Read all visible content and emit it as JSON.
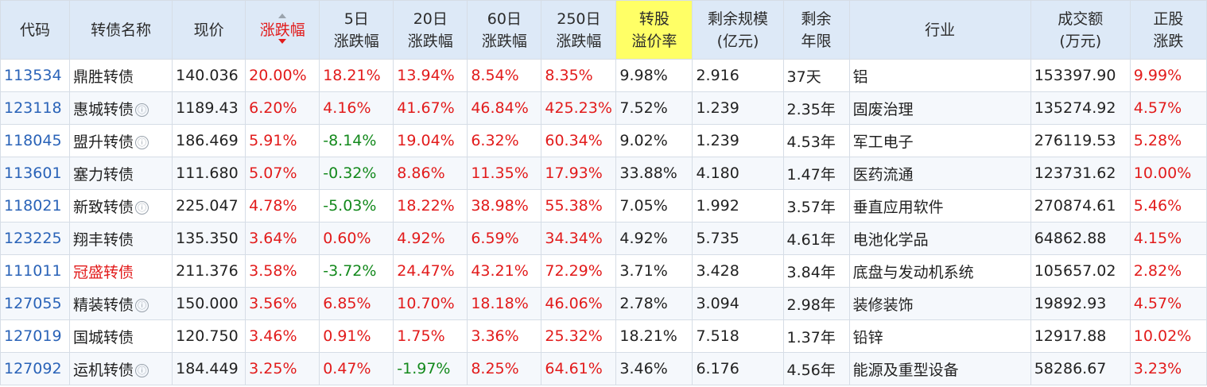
{
  "headers": {
    "code": "代码",
    "name": "转债名称",
    "price": "现价",
    "change": "涨跌幅",
    "change5_1": "5日",
    "change5_2": "涨跌幅",
    "change20_1": "20日",
    "change20_2": "涨跌幅",
    "change60_1": "60日",
    "change60_2": "涨跌幅",
    "change250_1": "250日",
    "change250_2": "涨跌幅",
    "premium_1": "转股",
    "premium_2": "溢价率",
    "scale_1": "剩余规模",
    "scale_2": "(亿元)",
    "years_1": "剩余",
    "years_2": "年限",
    "industry": "行业",
    "volume_1": "成交额",
    "volume_2": "(万元)",
    "stock_1": "正股",
    "stock_2": "涨跌"
  },
  "info_icon": "ⓘ",
  "colors": {
    "up": "#e21b1b",
    "down": "#13891c",
    "code": "#2a63b8",
    "header_bg": "#dde9f7",
    "highlight": "#ffff66"
  },
  "rows": [
    {
      "code": "113534",
      "name": "鼎胜转债",
      "icon": false,
      "name_red": false,
      "price": "140.036",
      "change": "20.00%",
      "c5": "18.21%",
      "c20": "13.94%",
      "c60": "8.54%",
      "c250": "8.35%",
      "premium": "9.98%",
      "scale": "2.916",
      "years": "37天",
      "industry": "铝",
      "volume": "153397.90",
      "stock": "9.99%"
    },
    {
      "code": "123118",
      "name": "惠城转债",
      "icon": true,
      "name_red": false,
      "price": "1189.43",
      "change": "6.20%",
      "c5": "4.16%",
      "c20": "41.67%",
      "c60": "46.84%",
      "c250": "425.23%",
      "premium": "7.52%",
      "scale": "1.239",
      "years": "2.35年",
      "industry": "固废治理",
      "volume": "135274.92",
      "stock": "4.57%"
    },
    {
      "code": "118045",
      "name": "盟升转债",
      "icon": true,
      "name_red": false,
      "price": "186.469",
      "change": "5.91%",
      "c5": "-8.14%",
      "c20": "19.04%",
      "c60": "6.32%",
      "c250": "60.34%",
      "premium": "9.02%",
      "scale": "1.239",
      "years": "4.53年",
      "industry": "军工电子",
      "volume": "276119.53",
      "stock": "5.28%"
    },
    {
      "code": "113601",
      "name": "塞力转债",
      "icon": false,
      "name_red": false,
      "price": "111.680",
      "change": "5.07%",
      "c5": "-0.32%",
      "c20": "8.86%",
      "c60": "11.35%",
      "c250": "17.93%",
      "premium": "33.88%",
      "scale": "4.180",
      "years": "1.47年",
      "industry": "医药流通",
      "volume": "123731.62",
      "stock": "10.00%"
    },
    {
      "code": "118021",
      "name": "新致转债",
      "icon": true,
      "name_red": false,
      "price": "225.047",
      "change": "4.78%",
      "c5": "-5.03%",
      "c20": "18.22%",
      "c60": "38.98%",
      "c250": "55.38%",
      "premium": "7.05%",
      "scale": "1.992",
      "years": "3.57年",
      "industry": "垂直应用软件",
      "volume": "270874.61",
      "stock": "5.46%"
    },
    {
      "code": "123225",
      "name": "翔丰转债",
      "icon": false,
      "name_red": false,
      "price": "135.350",
      "change": "3.64%",
      "c5": "0.60%",
      "c20": "4.92%",
      "c60": "6.59%",
      "c250": "34.34%",
      "premium": "4.92%",
      "scale": "5.735",
      "years": "4.61年",
      "industry": "电池化学品",
      "volume": "64862.88",
      "stock": "4.15%"
    },
    {
      "code": "111011",
      "name": "冠盛转债",
      "icon": false,
      "name_red": true,
      "price": "211.376",
      "change": "3.58%",
      "c5": "-3.72%",
      "c20": "24.47%",
      "c60": "43.21%",
      "c250": "72.29%",
      "premium": "3.71%",
      "scale": "3.428",
      "years": "3.84年",
      "industry": "底盘与发动机系统",
      "volume": "105657.02",
      "stock": "2.82%"
    },
    {
      "code": "127055",
      "name": "精装转债",
      "icon": true,
      "name_red": false,
      "price": "150.000",
      "change": "3.56%",
      "c5": "6.85%",
      "c20": "10.70%",
      "c60": "18.18%",
      "c250": "46.06%",
      "premium": "2.78%",
      "scale": "3.094",
      "years": "2.98年",
      "industry": "装修装饰",
      "volume": "19892.93",
      "stock": "4.57%"
    },
    {
      "code": "127019",
      "name": "国城转债",
      "icon": false,
      "name_red": false,
      "price": "120.750",
      "change": "3.46%",
      "c5": "0.91%",
      "c20": "1.75%",
      "c60": "3.36%",
      "c250": "25.32%",
      "premium": "18.21%",
      "scale": "7.518",
      "years": "1.37年",
      "industry": "铅锌",
      "volume": "12917.88",
      "stock": "10.02%"
    },
    {
      "code": "127092",
      "name": "运机转债",
      "icon": true,
      "name_red": false,
      "price": "184.449",
      "change": "3.25%",
      "c5": "0.47%",
      "c20": "-1.97%",
      "c60": "8.25%",
      "c250": "64.61%",
      "premium": "3.46%",
      "scale": "6.176",
      "years": "4.56年",
      "industry": "能源及重型设备",
      "volume": "58286.67",
      "stock": "3.23%"
    }
  ]
}
